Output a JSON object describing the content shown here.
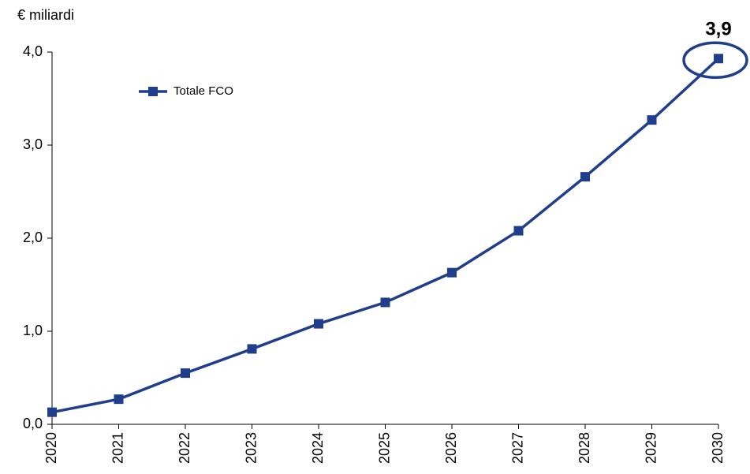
{
  "chart_data": {
    "type": "line",
    "y_label": "€ miliardi",
    "categories": [
      "2020",
      "2021",
      "2022",
      "2023",
      "2024",
      "2025",
      "2026",
      "2027",
      "2028",
      "2029",
      "2030"
    ],
    "series": [
      {
        "name": "Totale FCO",
        "color": "#213e8c",
        "values": [
          0.13,
          0.27,
          0.55,
          0.81,
          1.08,
          1.31,
          1.63,
          2.08,
          2.66,
          3.27,
          3.93
        ],
        "value_labels": [
          null,
          null,
          null,
          null,
          null,
          null,
          null,
          null,
          null,
          null,
          "3,9"
        ]
      }
    ],
    "ylim": [
      0,
      4
    ],
    "yticks": [
      {
        "value": 0,
        "label": "0,0"
      },
      {
        "value": 1,
        "label": "1,0"
      },
      {
        "value": 2,
        "label": "2,0"
      },
      {
        "value": 3,
        "label": "3,0"
      },
      {
        "value": 4,
        "label": "4,0"
      }
    ],
    "legend": "upper left",
    "grid": false
  }
}
